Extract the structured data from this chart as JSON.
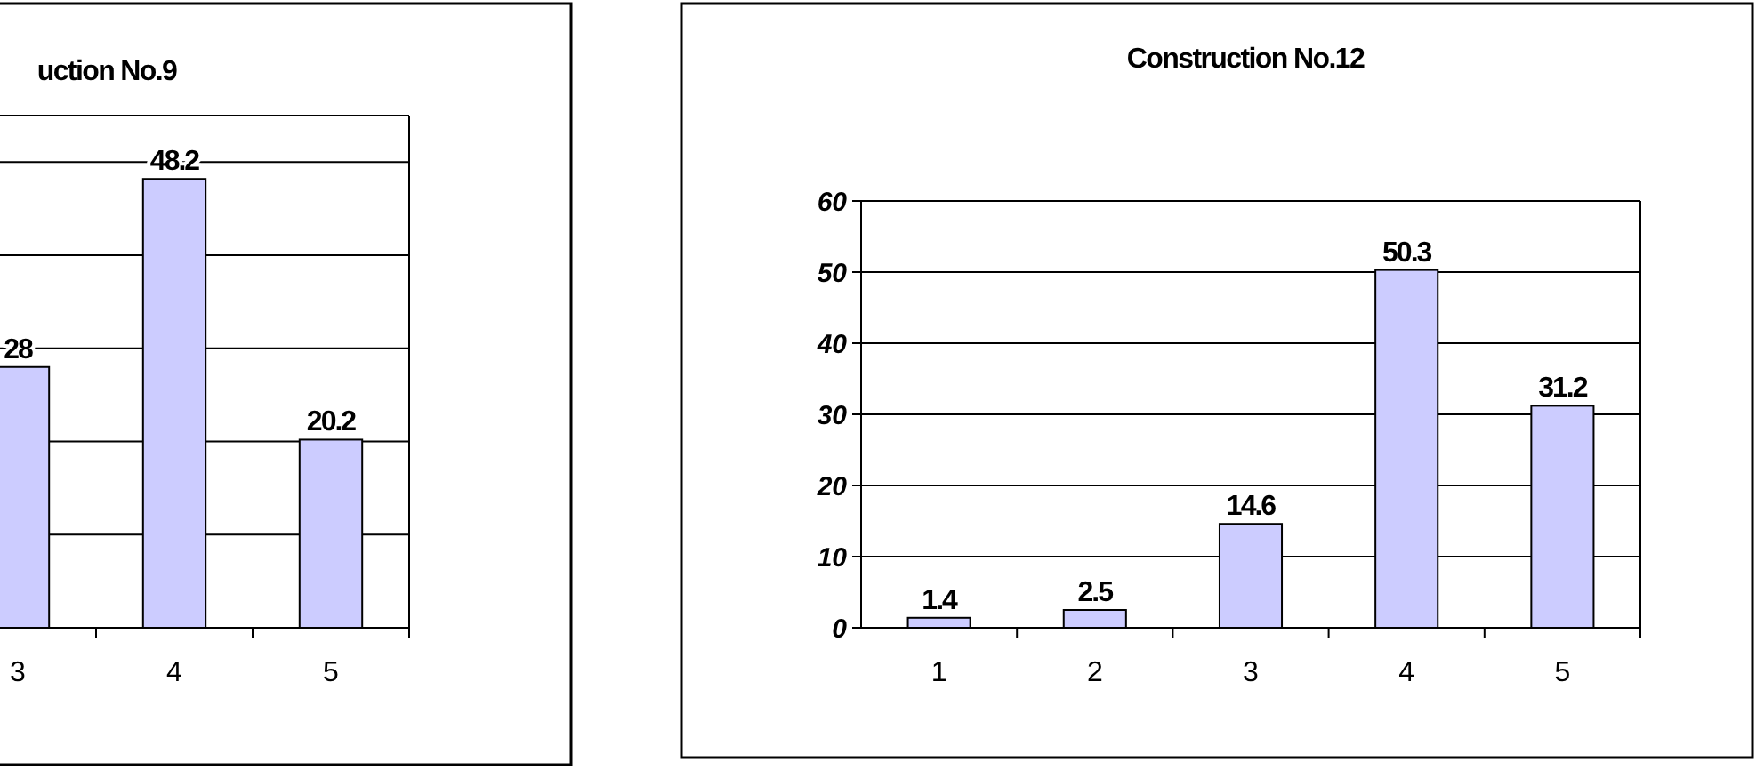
{
  "chart_data": [
    {
      "type": "bar",
      "title": "uction No.9",
      "categories": [
        "3",
        "4",
        "5"
      ],
      "values": [
        28,
        48.2,
        20.2
      ],
      "color": "#ccccff",
      "ylim": [
        0,
        55
      ],
      "yticks": [
        {
          "value": 0,
          "label": null
        },
        {
          "value": 10,
          "label": null
        },
        {
          "value": 20,
          "label": null
        },
        {
          "value": 30,
          "label": null
        },
        {
          "value": 40,
          "label": null
        },
        {
          "value": 50,
          "label": null
        }
      ],
      "tick_labels": "x",
      "grid": "y",
      "data_labels": true
    },
    {
      "type": "bar",
      "title": "Construction No.12",
      "categories": [
        "1",
        "2",
        "3",
        "4",
        "5"
      ],
      "values": [
        1.4,
        2.5,
        14.6,
        50.3,
        31.2
      ],
      "color": "#ccccff",
      "ylim": [
        0,
        60
      ],
      "yticks": [
        0,
        10,
        20,
        30,
        40,
        50,
        60
      ],
      "grid": "y",
      "data_labels": true
    }
  ]
}
